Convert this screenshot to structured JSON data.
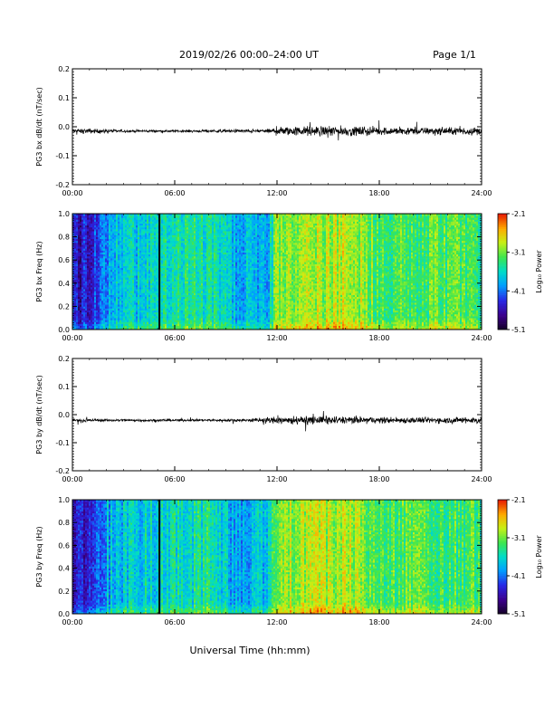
{
  "header": {
    "title": "2019/02/26  00:00–24:00 UT",
    "page_label": "Page 1/1"
  },
  "chart_data": [
    {
      "type": "line",
      "ylabel": "PG3 bx dB/dt (nT/sec)",
      "ylim": [
        -0.2,
        0.2
      ],
      "yticks": [
        "0.2",
        "0.1",
        "0.0",
        "-0.1",
        "-0.2"
      ],
      "xlim": [
        0,
        24
      ],
      "xticks": [
        "00:00",
        "06:00",
        "12:00",
        "18:00",
        "24:00"
      ],
      "baseline": -0.015,
      "noise_envelope": [
        {
          "x": 0,
          "amp": 0.01
        },
        {
          "x": 1,
          "amp": 0.012
        },
        {
          "x": 2,
          "amp": 0.009
        },
        {
          "x": 3,
          "amp": 0.007
        },
        {
          "x": 6,
          "amp": 0.006
        },
        {
          "x": 9,
          "amp": 0.008
        },
        {
          "x": 11.5,
          "amp": 0.01
        },
        {
          "x": 12,
          "amp": 0.022
        },
        {
          "x": 15,
          "amp": 0.026
        },
        {
          "x": 18,
          "amp": 0.02
        },
        {
          "x": 21,
          "amp": 0.018
        },
        {
          "x": 24,
          "amp": 0.02
        }
      ]
    },
    {
      "type": "heatmap",
      "ylabel": "PG3 bx Freq (Hz)",
      "ylim": [
        0,
        1
      ],
      "yticks": [
        "1.0",
        "0.8",
        "0.6",
        "0.4",
        "0.2",
        "0.0"
      ],
      "xlim": [
        0,
        24
      ],
      "xticks": [
        "00:00",
        "06:00",
        "12:00",
        "18:00",
        "24:00"
      ],
      "colorbar": {
        "label": "Log₁₀ Power",
        "ticks": [
          "-2.1",
          "-3.1",
          "-4.1",
          "-5.1"
        ],
        "range": [
          -5.1,
          -2.1
        ]
      },
      "data_gap": {
        "start": 5.05,
        "end": 5.15
      },
      "power_profile": [
        {
          "x": 0,
          "power": -4.6
        },
        {
          "x": 1.5,
          "power": -4.3
        },
        {
          "x": 2,
          "power": -3.9
        },
        {
          "x": 5,
          "power": -3.6
        },
        {
          "x": 8,
          "power": -3.5
        },
        {
          "x": 9.5,
          "power": -3.9
        },
        {
          "x": 11.5,
          "power": -3.8
        },
        {
          "x": 12,
          "power": -3.0
        },
        {
          "x": 16,
          "power": -2.9
        },
        {
          "x": 18,
          "power": -3.2
        },
        {
          "x": 24,
          "power": -3.3
        }
      ]
    },
    {
      "type": "line",
      "ylabel": "PG3 by dB/dt (nT/sec)",
      "ylim": [
        -0.2,
        0.2
      ],
      "yticks": [
        "0.2",
        "0.1",
        "0.0",
        "-0.1",
        "-0.2"
      ],
      "xlim": [
        0,
        24
      ],
      "xticks": [
        "00:00",
        "06:00",
        "12:00",
        "18:00",
        "24:00"
      ],
      "baseline": -0.02,
      "noise_envelope": [
        {
          "x": 0,
          "amp": 0.008
        },
        {
          "x": 2,
          "amp": 0.007
        },
        {
          "x": 6,
          "amp": 0.006
        },
        {
          "x": 10,
          "amp": 0.007
        },
        {
          "x": 12,
          "amp": 0.02
        },
        {
          "x": 15,
          "amp": 0.022
        },
        {
          "x": 18,
          "amp": 0.017
        },
        {
          "x": 21,
          "amp": 0.015
        },
        {
          "x": 24,
          "amp": 0.018
        }
      ]
    },
    {
      "type": "heatmap",
      "ylabel": "PG3 by Freq (Hz)",
      "ylim": [
        0,
        1
      ],
      "yticks": [
        "1.0",
        "0.8",
        "0.6",
        "0.4",
        "0.2",
        "0.0"
      ],
      "xlim": [
        0,
        24
      ],
      "xticks": [
        "00:00",
        "06:00",
        "12:00",
        "18:00",
        "24:00"
      ],
      "xlabel": "Universal Time (hh:mm)",
      "colorbar": {
        "label": "Log₁₀ Power",
        "ticks": [
          "-2.1",
          "-3.1",
          "-4.1",
          "-5.1"
        ],
        "range": [
          -5.1,
          -2.1
        ]
      },
      "data_gap": {
        "start": 5.05,
        "end": 5.15
      },
      "power_profile": [
        {
          "x": 0,
          "power": -4.6
        },
        {
          "x": 1.5,
          "power": -4.3
        },
        {
          "x": 2,
          "power": -3.9
        },
        {
          "x": 5,
          "power": -3.6
        },
        {
          "x": 8,
          "power": -3.5
        },
        {
          "x": 9.5,
          "power": -3.9
        },
        {
          "x": 11.5,
          "power": -3.8
        },
        {
          "x": 12,
          "power": -3.0
        },
        {
          "x": 16,
          "power": -2.9
        },
        {
          "x": 18,
          "power": -3.2
        },
        {
          "x": 24,
          "power": -3.3
        }
      ]
    }
  ]
}
